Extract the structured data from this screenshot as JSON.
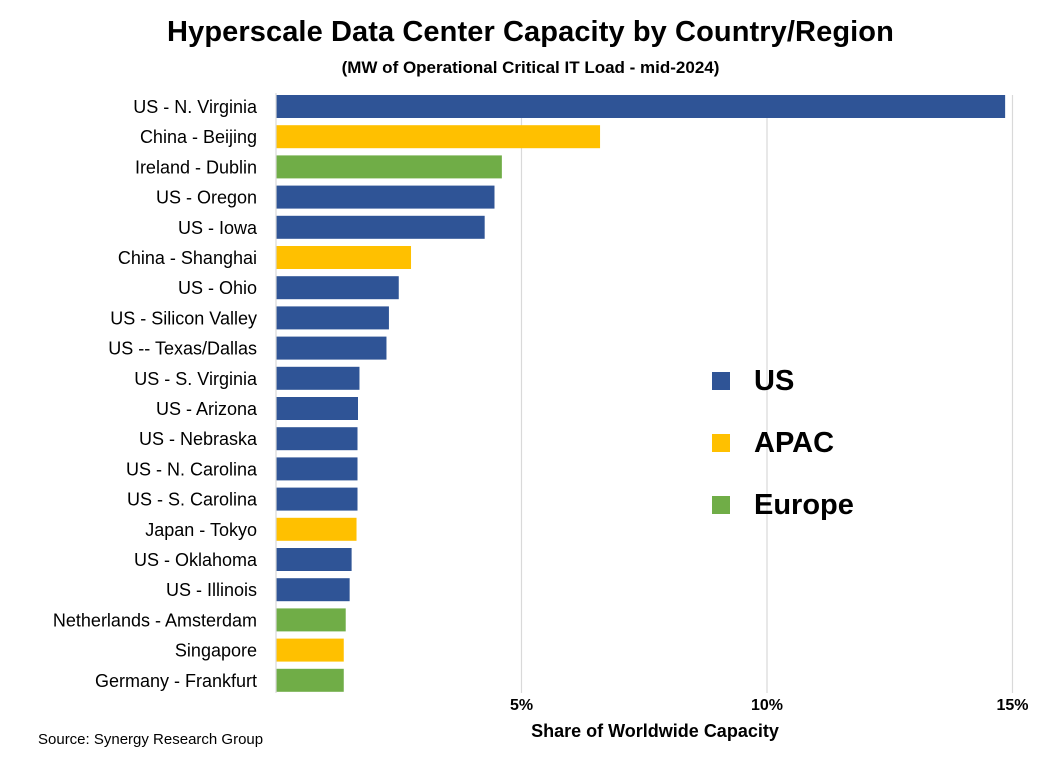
{
  "chart_data": {
    "type": "bar",
    "orientation": "horizontal",
    "title": "Hyperscale Data Center Capacity by Country/Region",
    "subtitle": "(MW of Operational Critical IT Load - mid-2024)",
    "xlabel": "Share of Worldwide Capacity",
    "ylabel": "",
    "xlim": [
      0,
      15
    ],
    "xticks": [
      5,
      10,
      15
    ],
    "xtick_labels": [
      "5%",
      "10%",
      "15%"
    ],
    "grid": "vertical",
    "legend_position": "center-right",
    "categories": [
      "US - N. Virginia",
      "China - Beijing",
      "Ireland - Dublin",
      "US - Oregon",
      "US - Iowa",
      "China - Shanghai",
      "US - Ohio",
      "US - Silicon Valley",
      "US -- Texas/Dallas",
      "US - S. Virginia",
      "US - Arizona",
      "US - Nebraska",
      "US - N. Carolina",
      "US - S. Carolina",
      "Japan - Tokyo",
      "US - Oklahoma",
      "US - Illinois",
      "Netherlands - Amsterdam",
      "Singapore",
      "Germany - Frankfurt"
    ],
    "values": [
      14.85,
      6.6,
      4.6,
      4.45,
      4.25,
      2.75,
      2.5,
      2.3,
      2.25,
      1.7,
      1.67,
      1.66,
      1.66,
      1.66,
      1.64,
      1.54,
      1.5,
      1.42,
      1.38,
      1.38
    ],
    "groups": [
      "US",
      "APAC",
      "Europe",
      "US",
      "US",
      "APAC",
      "US",
      "US",
      "US",
      "US",
      "US",
      "US",
      "US",
      "US",
      "APAC",
      "US",
      "US",
      "Europe",
      "APAC",
      "Europe"
    ],
    "legend": [
      {
        "name": "US",
        "color": "#2F5496"
      },
      {
        "name": "APAC",
        "color": "#FFC000"
      },
      {
        "name": "Europe",
        "color": "#70AD47"
      }
    ]
  },
  "source": "Source: Synergy Research Group"
}
